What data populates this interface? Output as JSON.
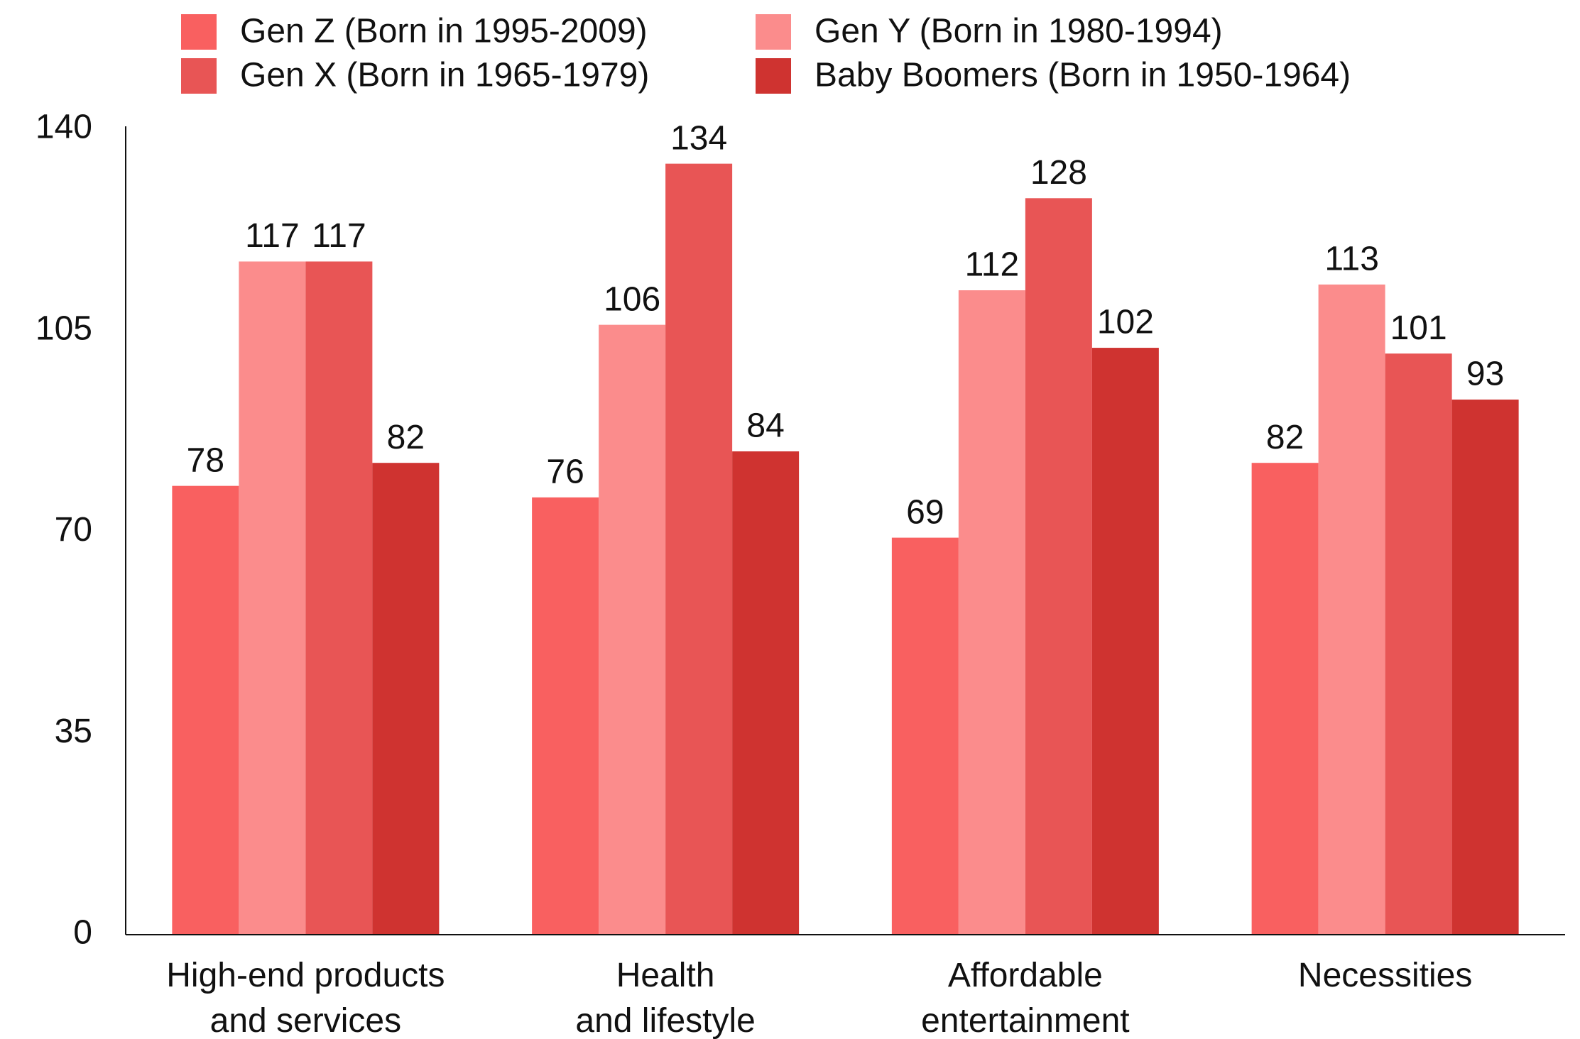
{
  "chart_data": {
    "type": "bar",
    "categories": [
      "High-end products\nand services",
      "Health\nand lifestyle",
      "Affordable\nentertainment",
      "Necessities"
    ],
    "series": [
      {
        "name": "Gen Z (Born in 1995-2009)",
        "color": "#f96060",
        "values": [
          78,
          76,
          69,
          82
        ]
      },
      {
        "name": "Gen Y (Born in 1980-1994)",
        "color": "#fb8c8c",
        "values": [
          117,
          106,
          112,
          113
        ]
      },
      {
        "name": "Gen X (Born in 1965-1979)",
        "color": "#e85555",
        "values": [
          117,
          134,
          128,
          101
        ]
      },
      {
        "name": "Baby Boomers (Born in 1950-1964)",
        "color": "#cf3330",
        "values": [
          82,
          84,
          102,
          93
        ]
      }
    ],
    "ylim": [
      0,
      140
    ],
    "yticks": [
      0,
      35,
      70,
      105,
      140
    ],
    "grid": false
  }
}
